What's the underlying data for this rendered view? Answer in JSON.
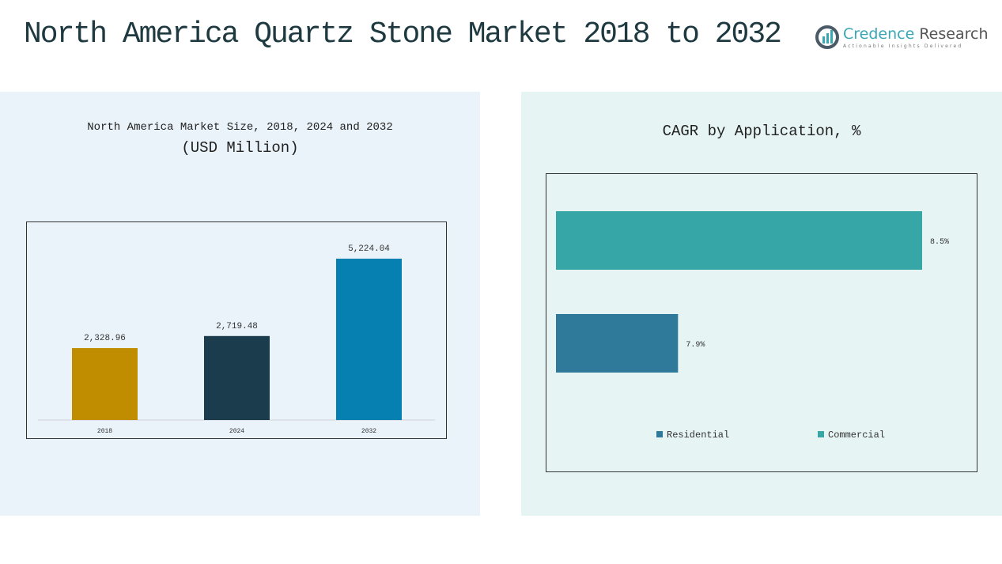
{
  "title": "North America Quartz Stone Market 2018 to 2032",
  "logo": {
    "name1": "Credence",
    "name2": "Research",
    "tagline": "Actionable Insights Delivered"
  },
  "chart_data": [
    {
      "type": "bar",
      "title": "North America Market Size, 2018, 2024 and 2032",
      "subtitle": "(USD Million)",
      "categories": [
        "2018",
        "2024",
        "2032"
      ],
      "values": [
        2328.96,
        2719.48,
        5224.04
      ],
      "labels": [
        "2,328.96",
        "2,719.48",
        "5,224.04"
      ],
      "colors": [
        "#c08c00",
        "#1a3c4c",
        "#0580b0"
      ],
      "ylim": [
        0,
        5224.04
      ]
    },
    {
      "type": "bar",
      "orientation": "horizontal",
      "title": "CAGR by Application, %",
      "categories": [
        "Commercial",
        "Residential"
      ],
      "values": [
        8.5,
        7.9
      ],
      "labels": [
        "8.5%",
        "7.9%"
      ],
      "colors": [
        "#36a6a6",
        "#2f7a9b"
      ],
      "xlim": [
        7.6,
        8.5
      ],
      "legend": [
        {
          "label": "Residential",
          "color": "#2f7a9b"
        },
        {
          "label": "Commercial",
          "color": "#36a6a6"
        }
      ],
      "legend_position": "bottom"
    }
  ]
}
